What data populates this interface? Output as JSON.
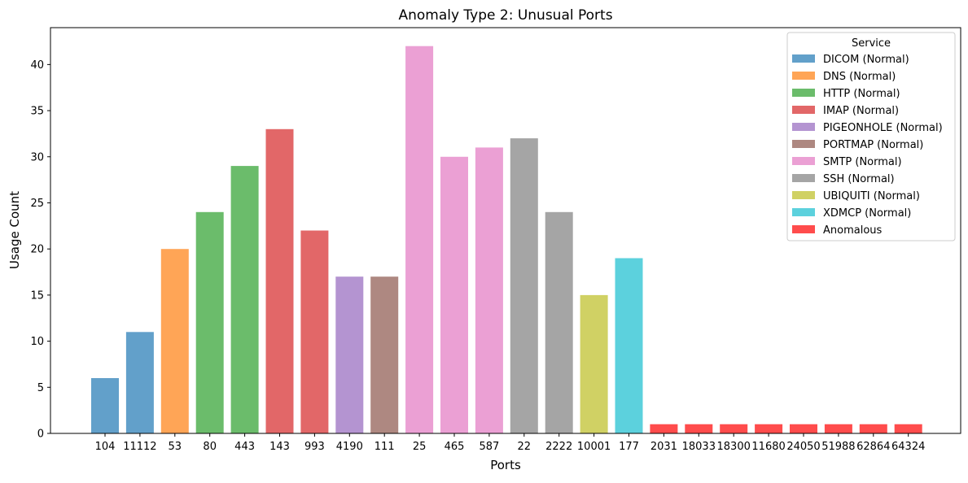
{
  "chart_data": {
    "type": "bar",
    "title": "Anomaly Type 2: Unusual Ports",
    "xlabel": "Ports",
    "ylabel": "Usage Count",
    "ylim": [
      0,
      44
    ],
    "yticks": [
      0,
      5,
      10,
      15,
      20,
      25,
      30,
      35,
      40
    ],
    "grid": false,
    "legend": {
      "title": "Service",
      "placement": "top-right",
      "entries": [
        {
          "name": "DICOM (Normal)",
          "color": "#1f77b4"
        },
        {
          "name": "DNS (Normal)",
          "color": "#ff7f0e"
        },
        {
          "name": "HTTP (Normal)",
          "color": "#2ca02c"
        },
        {
          "name": "IMAP (Normal)",
          "color": "#d62728"
        },
        {
          "name": "PIGEONHOLE (Normal)",
          "color": "#9467bd"
        },
        {
          "name": "PORTMAP (Normal)",
          "color": "#8c564b"
        },
        {
          "name": "SMTP (Normal)",
          "color": "#e377c2"
        },
        {
          "name": "SSH (Normal)",
          "color": "#7f7f7f"
        },
        {
          "name": "UBIQUITI (Normal)",
          "color": "#bcbd22"
        },
        {
          "name": "XDMCP (Normal)",
          "color": "#17becf"
        },
        {
          "name": "Anomalous",
          "color": "#ff0000"
        }
      ]
    },
    "bars": [
      {
        "port": "104",
        "value": 6,
        "series": "DICOM (Normal)"
      },
      {
        "port": "11112",
        "value": 11,
        "series": "DICOM (Normal)"
      },
      {
        "port": "53",
        "value": 20,
        "series": "DNS (Normal)"
      },
      {
        "port": "80",
        "value": 24,
        "series": "HTTP (Normal)"
      },
      {
        "port": "443",
        "value": 29,
        "series": "HTTP (Normal)"
      },
      {
        "port": "143",
        "value": 33,
        "series": "IMAP (Normal)"
      },
      {
        "port": "993",
        "value": 22,
        "series": "IMAP (Normal)"
      },
      {
        "port": "4190",
        "value": 17,
        "series": "PIGEONHOLE (Normal)"
      },
      {
        "port": "111",
        "value": 17,
        "series": "PORTMAP (Normal)"
      },
      {
        "port": "25",
        "value": 42,
        "series": "SMTP (Normal)"
      },
      {
        "port": "465",
        "value": 30,
        "series": "SMTP (Normal)"
      },
      {
        "port": "587",
        "value": 31,
        "series": "SMTP (Normal)"
      },
      {
        "port": "22",
        "value": 32,
        "series": "SSH (Normal)"
      },
      {
        "port": "2222",
        "value": 24,
        "series": "SSH (Normal)"
      },
      {
        "port": "10001",
        "value": 15,
        "series": "UBIQUITI (Normal)"
      },
      {
        "port": "177",
        "value": 19,
        "series": "XDMCP (Normal)"
      },
      {
        "port": "2031",
        "value": 1,
        "series": "Anomalous"
      },
      {
        "port": "18033",
        "value": 1,
        "series": "Anomalous"
      },
      {
        "port": "18300",
        "value": 1,
        "series": "Anomalous"
      },
      {
        "port": "11680",
        "value": 1,
        "series": "Anomalous"
      },
      {
        "port": "24050",
        "value": 1,
        "series": "Anomalous"
      },
      {
        "port": "51988",
        "value": 1,
        "series": "Anomalous"
      },
      {
        "port": "62864",
        "value": 1,
        "series": "Anomalous"
      },
      {
        "port": "64324",
        "value": 1,
        "series": "Anomalous"
      }
    ]
  }
}
